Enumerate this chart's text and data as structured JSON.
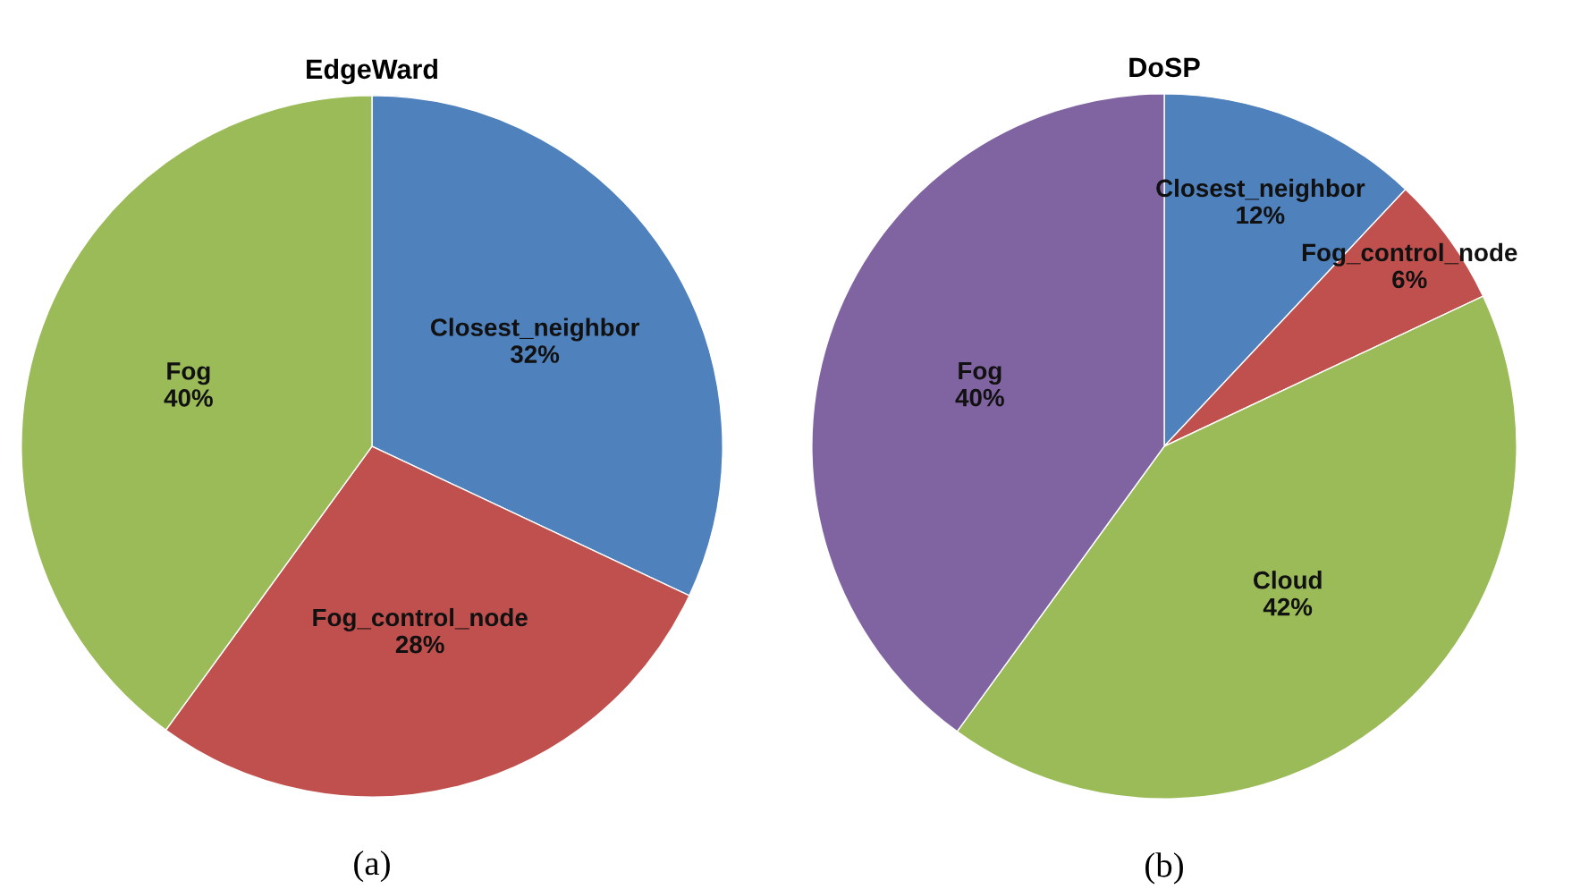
{
  "chart_data": [
    {
      "type": "pie",
      "title": "EdgeWard",
      "categories": [
        "Closest_neighbor",
        "Fog_control_node",
        "Fog"
      ],
      "values": [
        32,
        28,
        40
      ],
      "colors": [
        "#4f81bd",
        "#c0504d",
        "#9bbb59"
      ],
      "value_labels": [
        "32%",
        "28%",
        "40%"
      ],
      "annotations": [
        "(a)"
      ]
    },
    {
      "type": "pie",
      "title": "DoSP",
      "categories": [
        "Closest_neighbor",
        "Fog_control_node",
        "Cloud",
        "Fog"
      ],
      "values": [
        12,
        6,
        42,
        40
      ],
      "colors": [
        "#4f81bd",
        "#c0504d",
        "#9bbb59",
        "#8064a2"
      ],
      "value_labels": [
        "12%",
        "6%",
        "42%",
        "40%"
      ],
      "annotations": [
        "(b)"
      ]
    }
  ]
}
